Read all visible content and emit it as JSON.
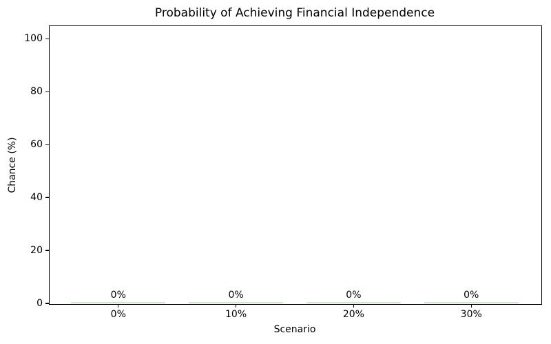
{
  "chart_data": {
    "type": "bar",
    "title": "Probability of Achieving Financial Independence",
    "xlabel": "Scenario",
    "ylabel": "Chance (%)",
    "categories": [
      "0%",
      "10%",
      "20%",
      "30%"
    ],
    "values": [
      0,
      0,
      0,
      0
    ],
    "value_labels": [
      "0%",
      "0%",
      "0%",
      "0%"
    ],
    "yticks": [
      0,
      20,
      40,
      60,
      80,
      100
    ],
    "ylim": [
      0,
      105
    ],
    "grid": false,
    "legend": null,
    "bar_color": "#cfe6cf",
    "axis_color": "#000000",
    "text_color": "#000000",
    "background_color": "#ffffff"
  }
}
